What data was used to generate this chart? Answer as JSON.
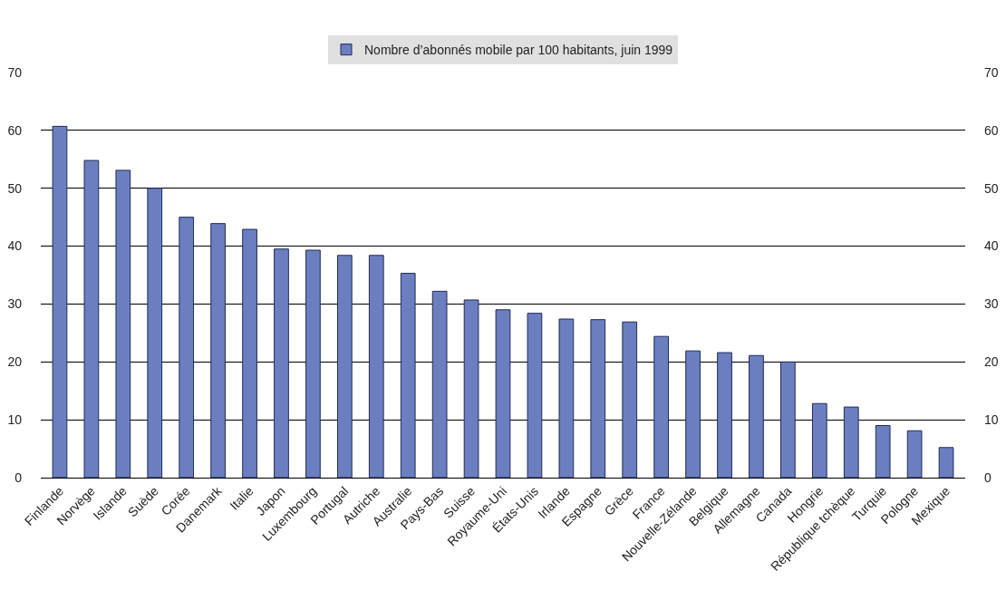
{
  "chart_data": {
    "type": "bar",
    "categories": [
      "Finlande",
      "Norvège",
      "Islande",
      "Suède",
      "Corée",
      "Danemark",
      "Italie",
      "Japon",
      "Luxembourg",
      "Portugal",
      "Autriche",
      "Australie",
      "Pays-Bas",
      "Suisse",
      "Royaume-Uni",
      "États-Unis",
      "Irlande",
      "Espagne",
      "Grèce",
      "France",
      "Nouvelle-Zélande",
      "Belgique",
      "Allemagne",
      "Canada",
      "Hongrie",
      "République tchèque",
      "Turquie",
      "Pologne",
      "Mexique"
    ],
    "series": [
      {
        "name": "Nombre d’abonnés mobile par 100 habitants, juin 1999",
        "color": "#6b7fc0",
        "values": [
          60.7,
          54.8,
          53.1,
          50.0,
          45.0,
          43.9,
          42.9,
          39.5,
          39.3,
          38.4,
          38.4,
          35.3,
          32.2,
          30.7,
          29.0,
          28.4,
          27.4,
          27.3,
          26.9,
          24.4,
          21.9,
          21.6,
          21.1,
          20.0,
          12.8,
          12.2,
          9.0,
          8.1,
          5.2
        ]
      }
    ],
    "ylim": [
      0,
      70
    ],
    "yticks": [
      0,
      10,
      20,
      30,
      40,
      50,
      60,
      70
    ],
    "y2lim": [
      0,
      70
    ],
    "y2ticks": [
      0,
      10,
      20,
      30,
      40,
      50,
      60,
      70
    ],
    "grid": "y",
    "legend": "top"
  }
}
